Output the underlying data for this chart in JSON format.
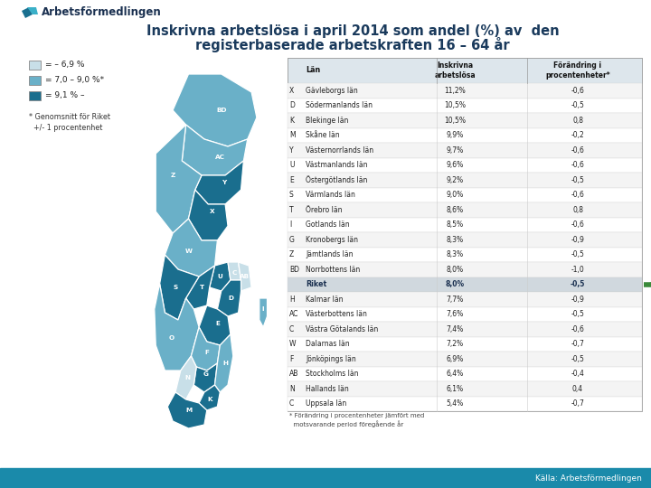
{
  "title_line1": "Inskrivna arbetslösa i april 2014 som andel (%) av  den",
  "title_line2": "registerbaserade arbetskraften 16 – 64 år",
  "title_color": "#1a3a5c",
  "bg_color": "#ffffff",
  "footer_color": "#1a8aaa",
  "footer_text": "Källa: Arbetsförmedlingen",
  "legend_labels": [
    "= – 6,9 %",
    "= 7,0 – 9,0 %*",
    "= 9,1 % –"
  ],
  "legend_colors": [
    "#c8dfe8",
    "#6ab0c8",
    "#1a6e8e"
  ],
  "legend_note": "* Genomsnitt för Riket\n  +/- 1 procentenhet",
  "table_data": [
    [
      "X",
      "Gävleborgs län",
      "11,2%",
      "-0,6"
    ],
    [
      "D",
      "Södermanlands län",
      "10,5%",
      "-0,5"
    ],
    [
      "K",
      "Blekinge län",
      "10,5%",
      "0,8"
    ],
    [
      "M",
      "Skåne län",
      "9,9%",
      "-0,2"
    ],
    [
      "Y",
      "Västernorrlands län",
      "9,7%",
      "-0,6"
    ],
    [
      "U",
      "Västmanlands län",
      "9,6%",
      "-0,6"
    ],
    [
      "E",
      "Östergötlands län",
      "9,2%",
      "-0,5"
    ],
    [
      "S",
      "Värmlands län",
      "9,0%",
      "-0,6"
    ],
    [
      "T",
      "Örebro län",
      "8,6%",
      "0,8"
    ],
    [
      "I",
      "Gotlands län",
      "8,5%",
      "-0,6"
    ],
    [
      "G",
      "Kronobergs län",
      "8,3%",
      "-0,9"
    ],
    [
      "Z",
      "Jämtlands län",
      "8,3%",
      "-0,5"
    ],
    [
      "BD",
      "Norrbottens län",
      "8,0%",
      "-1,0"
    ],
    [
      "",
      "Riket",
      "8,0%",
      "-0,5"
    ],
    [
      "H",
      "Kalmar län",
      "7,7%",
      "-0,9"
    ],
    [
      "AC",
      "Västerbottens län",
      "7,6%",
      "-0,5"
    ],
    [
      "C",
      "Västra Götalands län",
      "7,4%",
      "-0,6"
    ],
    [
      "W",
      "Dalarnas län",
      "7,2%",
      "-0,7"
    ],
    [
      "F",
      "Jönköpings län",
      "6,9%",
      "-0,5"
    ],
    [
      "AB",
      "Stockholms län",
      "6,4%",
      "-0,4"
    ],
    [
      "N",
      "Hallands län",
      "6,1%",
      "0,4"
    ],
    [
      "C",
      "Uppsala län",
      "5,4%",
      "-0,7"
    ]
  ],
  "table_note": "* Förändring i procentenheter jämfört med\n  motsvarande period föregående år",
  "arrow_color": "#3a8a3a",
  "riket_row_index": 13
}
